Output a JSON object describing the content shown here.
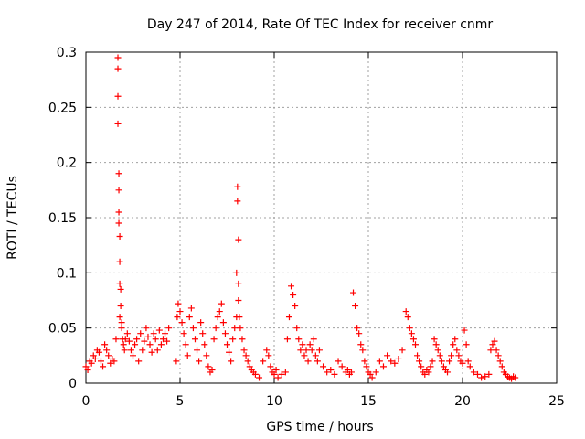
{
  "chart_data": {
    "type": "scatter",
    "title": "Day 247 of 2014, Rate Of TEC Index for receiver cnmr",
    "xlabel": "GPS time / hours",
    "ylabel": "ROTI / TECUs",
    "xlim": [
      0,
      25
    ],
    "ylim": [
      0,
      0.3
    ],
    "xticks": [
      0,
      5,
      10,
      15,
      20,
      25
    ],
    "yticks": [
      0,
      0.05,
      0.1,
      0.15,
      0.2,
      0.25,
      0.3
    ],
    "xtick_labels": [
      "0",
      "5",
      "10",
      "15",
      "20",
      "25"
    ],
    "ytick_labels": [
      "0",
      "0.05",
      "0.1",
      "0.15",
      "0.2",
      "0.25",
      "0.3"
    ],
    "grid": true,
    "marker": "+",
    "color": "#ff0000",
    "series": [
      {
        "name": "ROTI",
        "x": [
          0.0,
          0.1,
          0.2,
          0.3,
          0.4,
          0.5,
          0.6,
          0.7,
          0.8,
          0.9,
          1.0,
          1.1,
          1.2,
          1.3,
          1.4,
          1.5,
          1.6,
          1.7,
          1.7,
          1.7,
          1.7,
          1.75,
          1.75,
          1.75,
          1.75,
          1.8,
          1.8,
          1.8,
          1.8,
          1.85,
          1.85,
          1.9,
          1.9,
          1.95,
          2.0,
          2.05,
          2.1,
          2.2,
          2.3,
          2.4,
          2.5,
          2.6,
          2.7,
          2.8,
          2.9,
          3.0,
          3.1,
          3.2,
          3.3,
          3.4,
          3.5,
          3.6,
          3.7,
          3.8,
          3.9,
          4.0,
          4.1,
          4.2,
          4.3,
          4.4,
          4.8,
          4.85,
          4.9,
          5.0,
          5.1,
          5.2,
          5.3,
          5.4,
          5.5,
          5.6,
          5.7,
          5.8,
          5.9,
          6.0,
          6.1,
          6.2,
          6.3,
          6.4,
          6.5,
          6.6,
          6.7,
          6.8,
          6.9,
          7.0,
          7.1,
          7.2,
          7.3,
          7.4,
          7.5,
          7.6,
          7.7,
          7.8,
          7.9,
          8.0,
          8.0,
          8.05,
          8.05,
          8.1,
          8.1,
          8.1,
          8.15,
          8.2,
          8.3,
          8.4,
          8.5,
          8.6,
          8.7,
          8.8,
          8.9,
          9.0,
          9.2,
          9.4,
          9.6,
          9.7,
          9.8,
          9.9,
          10.0,
          10.1,
          10.2,
          10.4,
          10.6,
          10.7,
          10.8,
          10.9,
          11.0,
          11.1,
          11.2,
          11.3,
          11.4,
          11.5,
          11.6,
          11.7,
          11.8,
          11.9,
          12.0,
          12.1,
          12.2,
          12.3,
          12.4,
          12.6,
          12.8,
          13.0,
          13.2,
          13.4,
          13.6,
          13.8,
          13.9,
          14.0,
          14.1,
          14.2,
          14.3,
          14.4,
          14.5,
          14.6,
          14.7,
          14.8,
          14.9,
          15.0,
          15.1,
          15.2,
          15.4,
          15.6,
          15.8,
          16.0,
          16.2,
          16.4,
          16.6,
          16.8,
          17.0,
          17.1,
          17.2,
          17.3,
          17.4,
          17.5,
          17.6,
          17.7,
          17.8,
          17.9,
          18.0,
          18.1,
          18.2,
          18.3,
          18.4,
          18.5,
          18.6,
          18.7,
          18.8,
          18.9,
          19.0,
          19.1,
          19.2,
          19.3,
          19.4,
          19.5,
          19.6,
          19.7,
          19.8,
          19.9,
          20.0,
          20.1,
          20.2,
          20.3,
          20.4,
          20.6,
          20.8,
          21.0,
          21.2,
          21.4,
          21.5,
          21.6,
          21.7,
          21.8,
          21.9,
          22.0,
          22.1,
          22.2,
          22.3,
          22.4,
          22.5,
          22.6,
          22.7,
          22.8
        ],
        "y": [
          0.015,
          0.012,
          0.02,
          0.018,
          0.025,
          0.022,
          0.03,
          0.028,
          0.02,
          0.015,
          0.035,
          0.03,
          0.025,
          0.018,
          0.022,
          0.02,
          0.04,
          0.235,
          0.285,
          0.295,
          0.26,
          0.19,
          0.175,
          0.155,
          0.145,
          0.133,
          0.11,
          0.09,
          0.06,
          0.085,
          0.07,
          0.055,
          0.05,
          0.04,
          0.035,
          0.03,
          0.04,
          0.045,
          0.038,
          0.03,
          0.025,
          0.035,
          0.04,
          0.02,
          0.045,
          0.03,
          0.038,
          0.05,
          0.042,
          0.035,
          0.028,
          0.045,
          0.04,
          0.03,
          0.048,
          0.035,
          0.04,
          0.045,
          0.038,
          0.05,
          0.02,
          0.06,
          0.072,
          0.065,
          0.055,
          0.045,
          0.035,
          0.025,
          0.06,
          0.068,
          0.05,
          0.04,
          0.03,
          0.02,
          0.055,
          0.045,
          0.035,
          0.025,
          0.015,
          0.01,
          0.012,
          0.04,
          0.05,
          0.06,
          0.065,
          0.072,
          0.055,
          0.045,
          0.035,
          0.028,
          0.02,
          0.04,
          0.05,
          0.06,
          0.1,
          0.178,
          0.165,
          0.13,
          0.09,
          0.075,
          0.06,
          0.05,
          0.04,
          0.03,
          0.025,
          0.02,
          0.015,
          0.012,
          0.01,
          0.008,
          0.005,
          0.02,
          0.03,
          0.025,
          0.015,
          0.01,
          0.008,
          0.012,
          0.005,
          0.008,
          0.01,
          0.04,
          0.06,
          0.088,
          0.08,
          0.07,
          0.05,
          0.04,
          0.03,
          0.035,
          0.025,
          0.03,
          0.02,
          0.035,
          0.03,
          0.04,
          0.025,
          0.02,
          0.03,
          0.015,
          0.01,
          0.012,
          0.008,
          0.02,
          0.015,
          0.01,
          0.012,
          0.008,
          0.01,
          0.082,
          0.07,
          0.05,
          0.045,
          0.035,
          0.03,
          0.02,
          0.015,
          0.01,
          0.008,
          0.005,
          0.01,
          0.02,
          0.015,
          0.025,
          0.02,
          0.018,
          0.022,
          0.03,
          0.065,
          0.06,
          0.05,
          0.045,
          0.04,
          0.035,
          0.025,
          0.02,
          0.015,
          0.01,
          0.008,
          0.012,
          0.01,
          0.015,
          0.02,
          0.04,
          0.035,
          0.03,
          0.025,
          0.02,
          0.015,
          0.012,
          0.01,
          0.02,
          0.025,
          0.035,
          0.04,
          0.03,
          0.025,
          0.02,
          0.018,
          0.048,
          0.035,
          0.02,
          0.015,
          0.01,
          0.008,
          0.005,
          0.006,
          0.008,
          0.03,
          0.035,
          0.038,
          0.03,
          0.025,
          0.02,
          0.015,
          0.01,
          0.008,
          0.006,
          0.005,
          0.004,
          0.006,
          0.005
        ]
      }
    ]
  }
}
